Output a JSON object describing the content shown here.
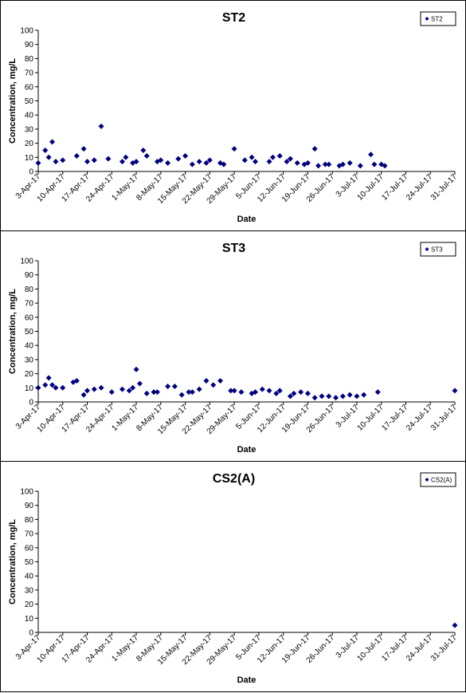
{
  "chart_data": [
    {
      "type": "scatter",
      "title": "ST2",
      "xlabel": "Date",
      "ylabel": "Concentration, mg/L",
      "ylim": [
        0,
        100
      ],
      "yticks": [
        0,
        10,
        20,
        30,
        40,
        50,
        60,
        70,
        80,
        90,
        100
      ],
      "xlim": [
        "2017-04-03",
        "2017-07-31"
      ],
      "xtick_labels": [
        "3-Apr-17",
        "10-Apr-17",
        "17-Apr-17",
        "24-Apr-17",
        "1-May-17",
        "8-May-17",
        "15-May-17",
        "22-May-17",
        "29-May-17",
        "5-Jun-17",
        "12-Jun-17",
        "19-Jun-17",
        "26-Jun-17",
        "3-Jul-17",
        "10-Jul-17",
        "17-Jul-17",
        "24-Jul-17",
        "31-Jul-17"
      ],
      "legend": "top-right",
      "grid": false,
      "marker_color": "#000080",
      "series": [
        {
          "name": "ST2",
          "points": [
            [
              "2017-04-03",
              6
            ],
            [
              "2017-04-05",
              15
            ],
            [
              "2017-04-06",
              10
            ],
            [
              "2017-04-07",
              21
            ],
            [
              "2017-04-08",
              7
            ],
            [
              "2017-04-10",
              8
            ],
            [
              "2017-04-14",
              11
            ],
            [
              "2017-04-16",
              16
            ],
            [
              "2017-04-17",
              7
            ],
            [
              "2017-04-19",
              8
            ],
            [
              "2017-04-21",
              32
            ],
            [
              "2017-04-23",
              9
            ],
            [
              "2017-04-27",
              7
            ],
            [
              "2017-04-28",
              10
            ],
            [
              "2017-04-30",
              6
            ],
            [
              "2017-05-01",
              7
            ],
            [
              "2017-05-03",
              15
            ],
            [
              "2017-05-04",
              11
            ],
            [
              "2017-05-07",
              7
            ],
            [
              "2017-05-08",
              8
            ],
            [
              "2017-05-10",
              6
            ],
            [
              "2017-05-13",
              9
            ],
            [
              "2017-05-15",
              11
            ],
            [
              "2017-05-17",
              5
            ],
            [
              "2017-05-19",
              7
            ],
            [
              "2017-05-21",
              6
            ],
            [
              "2017-05-22",
              8
            ],
            [
              "2017-05-25",
              6
            ],
            [
              "2017-05-26",
              5
            ],
            [
              "2017-05-29",
              16
            ],
            [
              "2017-06-01",
              8
            ],
            [
              "2017-06-03",
              10
            ],
            [
              "2017-06-04",
              7
            ],
            [
              "2017-06-08",
              7
            ],
            [
              "2017-06-09",
              10
            ],
            [
              "2017-06-11",
              11
            ],
            [
              "2017-06-13",
              7
            ],
            [
              "2017-06-14",
              9
            ],
            [
              "2017-06-16",
              6
            ],
            [
              "2017-06-18",
              5
            ],
            [
              "2017-06-19",
              6
            ],
            [
              "2017-06-21",
              16
            ],
            [
              "2017-06-22",
              4
            ],
            [
              "2017-06-24",
              5
            ],
            [
              "2017-06-25",
              5
            ],
            [
              "2017-06-28",
              4
            ],
            [
              "2017-06-29",
              5
            ],
            [
              "2017-07-01",
              6
            ],
            [
              "2017-07-04",
              4
            ],
            [
              "2017-07-07",
              12
            ],
            [
              "2017-07-08",
              5
            ],
            [
              "2017-07-10",
              5
            ],
            [
              "2017-07-11",
              4
            ]
          ]
        }
      ]
    },
    {
      "type": "scatter",
      "title": "ST3",
      "xlabel": "Date",
      "ylabel": "Concentration, mg/L",
      "ylim": [
        0,
        100
      ],
      "yticks": [
        0,
        10,
        20,
        30,
        40,
        50,
        60,
        70,
        80,
        90,
        100
      ],
      "xlim": [
        "2017-04-03",
        "2017-07-31"
      ],
      "xtick_labels": [
        "3-Apr-17",
        "10-Apr-17",
        "17-Apr-17",
        "24-Apr-17",
        "1-May-17",
        "8-May-17",
        "15-May-17",
        "22-May-17",
        "29-May-17",
        "5-Jun-17",
        "12-Jun-17",
        "19-Jun-17",
        "26-Jun-17",
        "3-Jul-17",
        "10-Jul-17",
        "17-Jul-17",
        "24-Jul-17",
        "31-Jul-17"
      ],
      "legend": "top-right",
      "grid": false,
      "marker_color": "#000080",
      "series": [
        {
          "name": "ST3",
          "points": [
            [
              "2017-04-03",
              10
            ],
            [
              "2017-04-05",
              12
            ],
            [
              "2017-04-06",
              17
            ],
            [
              "2017-04-07",
              12
            ],
            [
              "2017-04-08",
              10
            ],
            [
              "2017-04-10",
              10
            ],
            [
              "2017-04-13",
              14
            ],
            [
              "2017-04-14",
              15
            ],
            [
              "2017-04-16",
              5
            ],
            [
              "2017-04-17",
              8
            ],
            [
              "2017-04-19",
              9
            ],
            [
              "2017-04-21",
              10
            ],
            [
              "2017-04-24",
              7
            ],
            [
              "2017-04-27",
              9
            ],
            [
              "2017-04-29",
              8
            ],
            [
              "2017-04-30",
              10
            ],
            [
              "2017-05-01",
              23
            ],
            [
              "2017-05-02",
              13
            ],
            [
              "2017-05-04",
              6
            ],
            [
              "2017-05-06",
              7
            ],
            [
              "2017-05-07",
              7
            ],
            [
              "2017-05-10",
              11
            ],
            [
              "2017-05-12",
              11
            ],
            [
              "2017-05-14",
              5
            ],
            [
              "2017-05-16",
              7
            ],
            [
              "2017-05-17",
              7
            ],
            [
              "2017-05-19",
              9
            ],
            [
              "2017-05-21",
              15
            ],
            [
              "2017-05-23",
              12
            ],
            [
              "2017-05-25",
              15
            ],
            [
              "2017-05-28",
              8
            ],
            [
              "2017-05-29",
              8
            ],
            [
              "2017-05-31",
              7
            ],
            [
              "2017-06-03",
              6
            ],
            [
              "2017-06-04",
              7
            ],
            [
              "2017-06-06",
              9
            ],
            [
              "2017-06-08",
              8
            ],
            [
              "2017-06-10",
              6
            ],
            [
              "2017-06-11",
              8
            ],
            [
              "2017-06-14",
              4
            ],
            [
              "2017-06-15",
              6
            ],
            [
              "2017-06-17",
              7
            ],
            [
              "2017-06-19",
              6
            ],
            [
              "2017-06-21",
              3
            ],
            [
              "2017-06-23",
              4
            ],
            [
              "2017-06-25",
              4
            ],
            [
              "2017-06-27",
              3
            ],
            [
              "2017-06-29",
              4
            ],
            [
              "2017-07-01",
              5
            ],
            [
              "2017-07-03",
              4
            ],
            [
              "2017-07-05",
              5
            ],
            [
              "2017-07-09",
              7
            ],
            [
              "2017-07-31",
              8
            ]
          ]
        }
      ]
    },
    {
      "type": "scatter",
      "title": "CS2(A)",
      "xlabel": "Date",
      "ylabel": "Concentration, mg/L",
      "ylim": [
        0,
        100
      ],
      "yticks": [
        0,
        10,
        20,
        30,
        40,
        50,
        60,
        70,
        80,
        90,
        100
      ],
      "xlim": [
        "2017-04-03",
        "2017-07-31"
      ],
      "xtick_labels": [
        "3-Apr-17",
        "10-Apr-17",
        "17-Apr-17",
        "24-Apr-17",
        "1-May-17",
        "8-May-17",
        "15-May-17",
        "22-May-17",
        "29-May-17",
        "5-Jun-17",
        "12-Jun-17",
        "19-Jun-17",
        "26-Jun-17",
        "3-Jul-17",
        "10-Jul-17",
        "17-Jul-17",
        "24-Jul-17",
        "31-Jul-17"
      ],
      "legend": "top-right",
      "grid": false,
      "marker_color": "#000080",
      "series": [
        {
          "name": "CS2(A)",
          "points": [
            [
              "2017-07-31",
              5
            ]
          ]
        }
      ]
    }
  ]
}
